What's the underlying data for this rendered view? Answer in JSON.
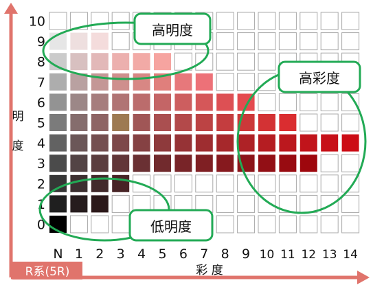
{
  "hue_label": "R系(5R)",
  "axis_label_chroma": "彩 度",
  "axis_label_value_top": "明",
  "axis_label_value_bottom": "度",
  "value_ticks": [
    "0",
    "1",
    "2",
    "3",
    "4",
    "5",
    "6",
    "7",
    "8",
    "9",
    "10"
  ],
  "chroma_ticks": [
    "N",
    "1",
    "2",
    "3",
    "4",
    "5",
    "6",
    "7",
    "8",
    "9",
    "10",
    "11",
    "12",
    "13",
    "14"
  ],
  "callouts": {
    "high_value": "高明度",
    "high_chroma": "高彩度",
    "low_value": "低明度"
  },
  "colors": {
    "arrow": "#e0746c",
    "hue_badge_bg": "#e0746c",
    "callout_border": "#22aa55",
    "grid_line": "#a8a8a8"
  },
  "swatches": [
    {
      "value": 9,
      "cells": [
        "#e6e6e6",
        "#eedfdf",
        "#f4dcdc"
      ]
    },
    {
      "value": 8,
      "cells": [
        "#cbcbcb",
        "#d8c0c0",
        "#e2b8b8",
        "#ecb0ae",
        "#f2aaa6",
        "#f6a4a0"
      ]
    },
    {
      "value": 7,
      "cells": [
        "#adadad",
        "#b9a1a1",
        "#c49796",
        "#cf8f8d",
        "#d88784",
        "#e07f7c",
        "#e7787b",
        "#ed7178"
      ]
    },
    {
      "value": 6,
      "cells": [
        "#939393",
        "#9c8787",
        "#a67d7d",
        "#b07474",
        "#bb6c6c",
        "#c46566",
        "#cd5e5f",
        "#d55759",
        "#dd5054",
        "#e44a4f"
      ]
    },
    {
      "value": 5,
      "cells": [
        "#7b7b7b",
        "#856d6d",
        "#8e6464",
        "#9d7a52",
        "#a05656",
        "#aa4f50",
        "#b3494a",
        "#bc4344",
        "#c43d3f",
        "#cc3839",
        "#d33234",
        "#da2d30"
      ]
    },
    {
      "value": 4,
      "cells": [
        "#626262",
        "#6b5758",
        "#744f50",
        "#7d4849",
        "#854143",
        "#8e3a3c",
        "#963336",
        "#9e2d30",
        "#a6282b",
        "#ae2226",
        "#b51d22",
        "#bb181e",
        "#c1141b",
        "#c71018",
        "#cc0c15"
      ]
    },
    {
      "value": 3,
      "cells": [
        "#4b4b4b",
        "#534445",
        "#5b3d3e",
        "#623638",
        "#6a3033",
        "#712a2d",
        "#782428",
        "#7f1f23",
        "#86191e",
        "#8c1419",
        "#920f15",
        "#980b11",
        "#9e070d"
      ]
    },
    {
      "value": 2,
      "cells": [
        "#363636",
        "#3c2f30",
        "#422a2b",
        "#482426"
      ]
    },
    {
      "value": 1,
      "cells": [
        "#1f1f1f",
        "#261c1d",
        "#2b1819"
      ]
    },
    {
      "value": 0,
      "cells": [
        "#000000"
      ]
    }
  ]
}
